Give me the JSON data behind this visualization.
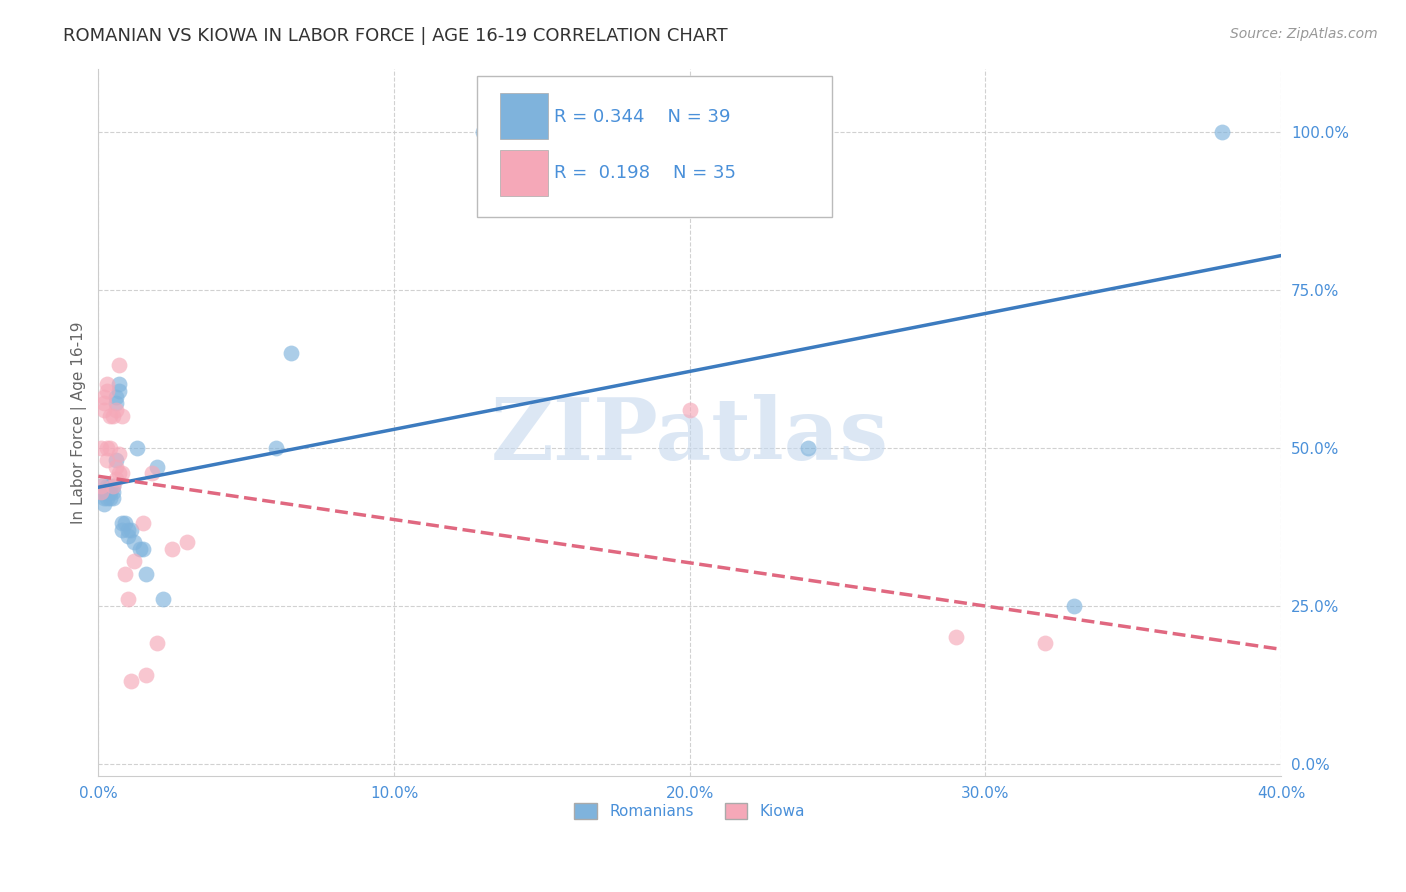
{
  "title": "ROMANIAN VS KIOWA IN LABOR FORCE | AGE 16-19 CORRELATION CHART",
  "source": "Source: ZipAtlas.com",
  "xlim": [
    0.0,
    0.4
  ],
  "ylim": [
    -0.02,
    1.1
  ],
  "ylabel": "In Labor Force | Age 16-19",
  "legend_r_romanian": "0.344",
  "legend_n_romanian": "39",
  "legend_r_kiowa": "0.198",
  "legend_n_kiowa": "35",
  "color_romanian": "#7fb3dc",
  "color_kiowa": "#f5a8b8",
  "color_line_romanian": "#3c7bbf",
  "color_line_kiowa": "#e06880",
  "color_tick_label": "#4a90d9",
  "watermark": "ZIPatlas",
  "watermark_color": "#c5d8ee",
  "romanians_x": [
    0.001,
    0.001,
    0.002,
    0.002,
    0.002,
    0.003,
    0.003,
    0.003,
    0.004,
    0.004,
    0.004,
    0.005,
    0.005,
    0.005,
    0.006,
    0.006,
    0.006,
    0.007,
    0.007,
    0.008,
    0.008,
    0.009,
    0.01,
    0.01,
    0.011,
    0.012,
    0.013,
    0.014,
    0.015,
    0.016,
    0.02,
    0.022,
    0.06,
    0.065,
    0.13,
    0.14,
    0.24,
    0.33,
    0.38
  ],
  "romanians_y": [
    0.44,
    0.43,
    0.43,
    0.42,
    0.41,
    0.44,
    0.43,
    0.42,
    0.44,
    0.43,
    0.42,
    0.44,
    0.43,
    0.42,
    0.57,
    0.58,
    0.48,
    0.6,
    0.59,
    0.38,
    0.37,
    0.38,
    0.37,
    0.36,
    0.37,
    0.35,
    0.5,
    0.34,
    0.34,
    0.3,
    0.47,
    0.26,
    0.5,
    0.65,
    1.0,
    1.0,
    0.5,
    0.25,
    1.0
  ],
  "kiowa_x": [
    0.001,
    0.001,
    0.001,
    0.002,
    0.002,
    0.002,
    0.003,
    0.003,
    0.003,
    0.003,
    0.004,
    0.004,
    0.005,
    0.005,
    0.006,
    0.006,
    0.006,
    0.007,
    0.007,
    0.007,
    0.008,
    0.008,
    0.009,
    0.01,
    0.011,
    0.012,
    0.015,
    0.016,
    0.018,
    0.02,
    0.025,
    0.03,
    0.2,
    0.29,
    0.32
  ],
  "kiowa_y": [
    0.44,
    0.5,
    0.43,
    0.58,
    0.57,
    0.56,
    0.6,
    0.59,
    0.48,
    0.5,
    0.55,
    0.5,
    0.44,
    0.55,
    0.56,
    0.47,
    0.45,
    0.63,
    0.49,
    0.46,
    0.55,
    0.46,
    0.3,
    0.26,
    0.13,
    0.32,
    0.38,
    0.14,
    0.46,
    0.19,
    0.34,
    0.35,
    0.56,
    0.2,
    0.19
  ]
}
